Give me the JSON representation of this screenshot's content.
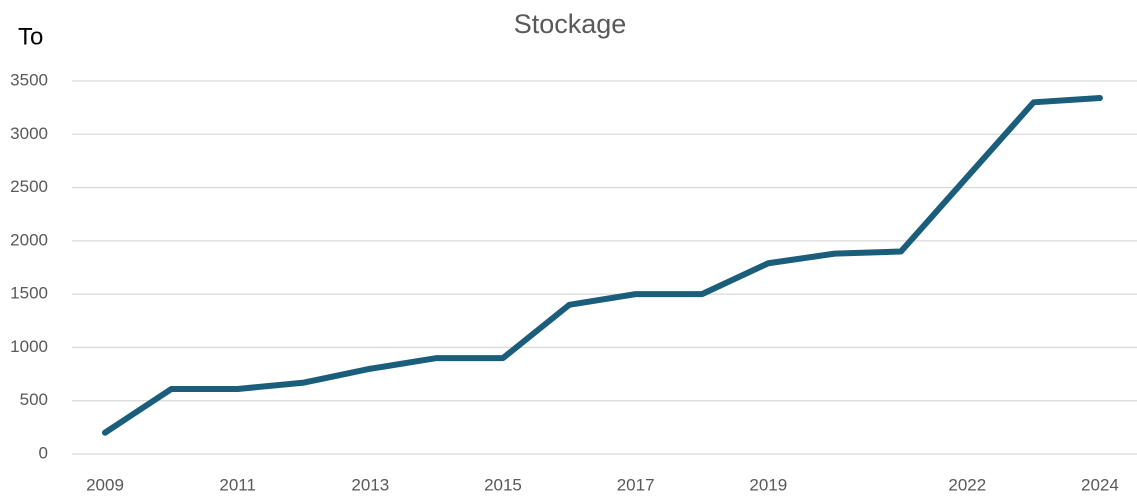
{
  "chart_data": {
    "type": "line",
    "title": "Stockage",
    "y_label": "To",
    "categories": [
      "2009",
      null,
      "2011",
      null,
      "2013",
      null,
      "2015",
      null,
      "2017",
      null,
      "2019",
      null,
      null,
      "2022",
      null,
      "2024"
    ],
    "series": [
      {
        "name": "Stockage",
        "color": "#1b5e7b",
        "values": [
          200,
          610,
          610,
          670,
          800,
          900,
          900,
          1400,
          1500,
          1500,
          1790,
          1880,
          1900,
          2600,
          3300,
          3340
        ]
      }
    ],
    "ylim": [
      0,
      3500
    ],
    "yticks": [
      0,
      500,
      1000,
      1500,
      2000,
      2500,
      3000,
      3500
    ],
    "grid": true
  }
}
